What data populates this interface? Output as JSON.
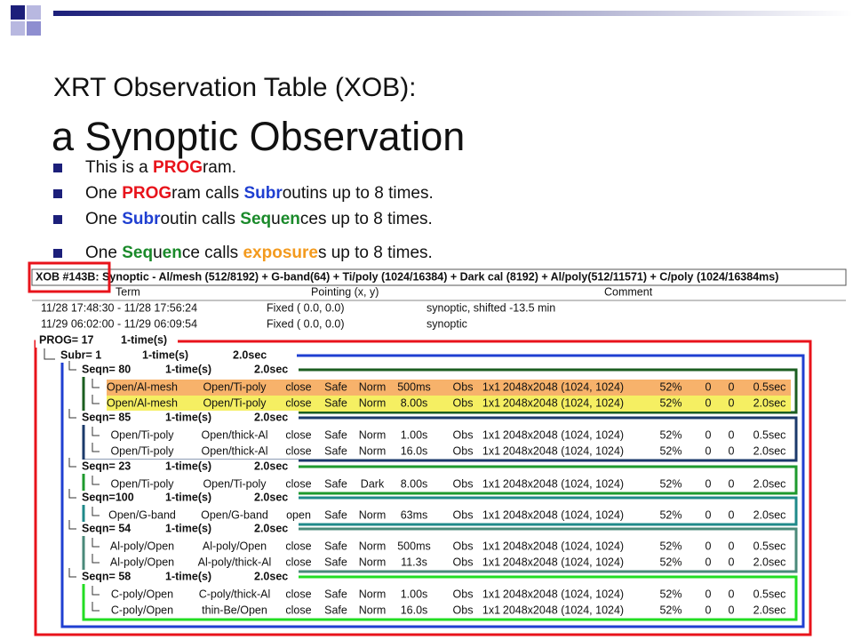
{
  "title": "XRT Observation Table (XOB):",
  "subtitle": "a Synoptic Observation",
  "bullets": [
    [
      {
        "text": "This is a "
      },
      {
        "text": "PROG",
        "color": "#e8131b"
      },
      {
        "text": "ram."
      }
    ],
    [
      {
        "text": "One "
      },
      {
        "text": "PROG",
        "color": "#e8131b"
      },
      {
        "text": "ram  calls "
      },
      {
        "text": "Subr",
        "color": "#1f3fd1"
      },
      {
        "text": "outins up to 8 times."
      }
    ],
    [
      {
        "text": "One "
      },
      {
        "text": "Subr",
        "color": "#1f3fd1"
      },
      {
        "text": "outin  calls "
      },
      {
        "text": "Seq",
        "color": "#1a8a2a"
      },
      {
        "text": "u"
      },
      {
        "text": "en",
        "color": "#1a8a2a"
      },
      {
        "text": "ces up to 8 times."
      }
    ],
    [
      {
        "text": "One "
      },
      {
        "text": "Seq",
        "color": "#1a8a2a"
      },
      {
        "text": "u"
      },
      {
        "text": "en",
        "color": "#1a8a2a"
      },
      {
        "text": "ce  calls "
      },
      {
        "text": "exposure",
        "color": "#f39a1e"
      },
      {
        "text": "s up to 8 times."
      }
    ]
  ],
  "table": {
    "header": "XOB #143B: Synoptic - Al/mesh (512/8192) + G-band(64) + Ti/poly (1024/16384) + Dark cal (8192) + Al/poly(512/11571) + C/poly (1024/16384ms)",
    "columns": [
      "Term",
      "Pointing (x, y)",
      "Comment"
    ],
    "terms": [
      [
        "11/28 17:48:30 - 11/28 17:56:24",
        "Fixed (   0.0,    0.0)",
        "synoptic, shifted -13.5 min"
      ],
      [
        "11/29 06:02:00 - 11/29 06:09:54",
        "Fixed (   0.0,    0.0)",
        "synoptic"
      ]
    ],
    "prog": {
      "label": "PROG= 17",
      "times": "1-time(s)"
    },
    "subr": {
      "label": "Subr=  1",
      "times": "1-time(s)",
      "duration": "2.0sec"
    },
    "sequences": [
      {
        "label": "Seqn= 80",
        "times": "1-time(s)",
        "duration": "2.0sec",
        "color": "#1b5e20",
        "highlights": [
          "#f7b26b",
          "#f5ef62"
        ],
        "rows": [
          [
            "Open/Al-mesh",
            "Open/Ti-poly",
            "close",
            "Safe",
            "Norm",
            "500ms",
            "Obs",
            "1x1",
            "2048x2048 (1024, 1024)",
            "52%",
            "0",
            "0",
            "0.5sec"
          ],
          [
            "Open/Al-mesh",
            "Open/Ti-poly",
            "close",
            "Safe",
            "Norm",
            "8.00s",
            "Obs",
            "1x1",
            "2048x2048 (1024, 1024)",
            "52%",
            "0",
            "0",
            "2.0sec"
          ]
        ]
      },
      {
        "label": "Seqn= 85",
        "times": "1-time(s)",
        "duration": "2.0sec",
        "color": "#1b3a6b",
        "rows": [
          [
            "Open/Ti-poly",
            "Open/thick-Al",
            "close",
            "Safe",
            "Norm",
            "1.00s",
            "Obs",
            "1x1",
            "2048x2048 (1024, 1024)",
            "52%",
            "0",
            "0",
            "0.5sec"
          ],
          [
            "Open/Ti-poly",
            "Open/thick-Al",
            "close",
            "Safe",
            "Norm",
            "16.0s",
            "Obs",
            "1x1",
            "2048x2048 (1024, 1024)",
            "52%",
            "0",
            "0",
            "2.0sec"
          ]
        ]
      },
      {
        "label": "Seqn= 23",
        "times": "1-time(s)",
        "duration": "2.0sec",
        "color": "#1e9a2e",
        "rows": [
          [
            "Open/Ti-poly",
            "Open/Ti-poly",
            "close",
            "Safe",
            "Dark",
            "8.00s",
            "Obs",
            "1x1",
            "2048x2048 (1024, 1024)",
            "52%",
            "0",
            "0",
            "2.0sec"
          ]
        ]
      },
      {
        "label": "Seqn=100",
        "times": "1-time(s)",
        "duration": "2.0sec",
        "color": "#1f8a8a",
        "rows": [
          [
            "Open/G-band",
            "Open/G-band",
            "open",
            "Safe",
            "Norm",
            "63ms",
            "Obs",
            "1x1",
            "2048x2048 (1024, 1024)",
            "52%",
            "0",
            "0",
            "2.0sec"
          ]
        ]
      },
      {
        "label": "Seqn= 54",
        "times": "1-time(s)",
        "duration": "2.0sec",
        "color": "#4a8a7a",
        "rows": [
          [
            "Al-poly/Open",
            "Al-poly/Open",
            "close",
            "Safe",
            "Norm",
            "500ms",
            "Obs",
            "1x1",
            "2048x2048 (1024, 1024)",
            "52%",
            "0",
            "0",
            "0.5sec"
          ],
          [
            "Al-poly/Open",
            "Al-poly/thick-Al",
            "close",
            "Safe",
            "Norm",
            "11.3s",
            "Obs",
            "1x1",
            "2048x2048 (1024, 1024)",
            "52%",
            "0",
            "0",
            "2.0sec"
          ]
        ]
      },
      {
        "label": "Seqn= 58",
        "times": "1-time(s)",
        "duration": "2.0sec",
        "color": "#22dd22",
        "rows": [
          [
            "C-poly/Open",
            "C-poly/thick-Al",
            "close",
            "Safe",
            "Norm",
            "1.00s",
            "Obs",
            "1x1",
            "2048x2048 (1024, 1024)",
            "52%",
            "0",
            "0",
            "0.5sec"
          ],
          [
            "C-poly/Open",
            "thin-Be/Open",
            "close",
            "Safe",
            "Norm",
            "16.0s",
            "Obs",
            "1x1",
            "2048x2048 (1024, 1024)",
            "52%",
            "0",
            "0",
            "2.0sec"
          ]
        ]
      }
    ]
  }
}
